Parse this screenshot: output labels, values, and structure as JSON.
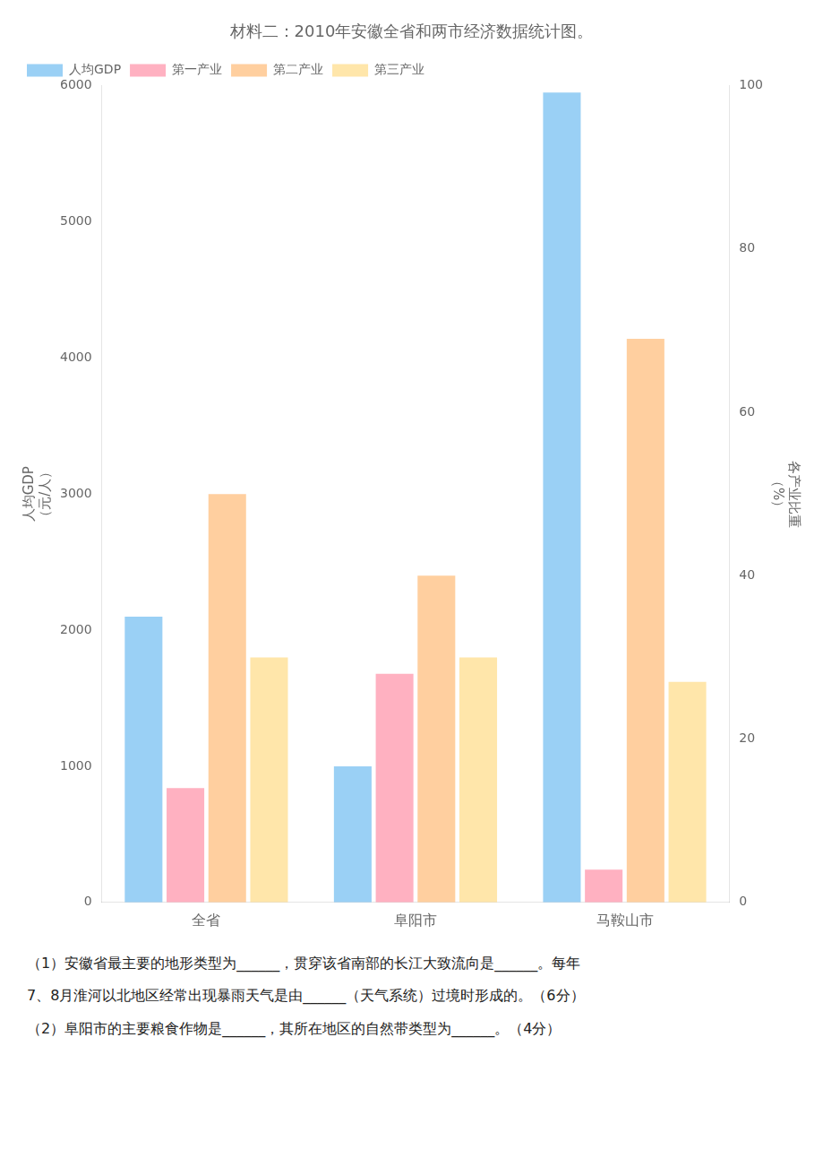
{
  "chart_data": {
    "type": "bar",
    "title": "材料二：2010年安徽全省和两市经济数据统计图。",
    "categories": [
      "全省",
      "阜阳市",
      "马鞍山市"
    ],
    "series": [
      {
        "name": "人均GDP",
        "values": [
          2100,
          1000,
          5950
        ]
      },
      {
        "name": "第一产业",
        "values": [
          14,
          28,
          4
        ],
        "axis": "y2"
      },
      {
        "name": "第二产业",
        "values": [
          50,
          40,
          69
        ],
        "axis": "y2"
      },
      {
        "name": "第三产业",
        "values": [
          30,
          30,
          27
        ],
        "axis": "y2"
      }
    ],
    "ylabel": "人均GDP",
    "y_unit": "（元/人）",
    "y2label": "各产业比重",
    "y2_unit": "（%）",
    "ylim": [
      0,
      6000
    ],
    "yticks": [
      0,
      1000,
      2000,
      3000,
      4000,
      5000,
      6000
    ],
    "y2lim": [
      0,
      100
    ],
    "y2ticks": [
      0,
      20,
      40,
      60,
      80,
      100
    ],
    "legend": "upper left",
    "grid": false,
    "annotations": [
      "（1）安徽省最主要的地形类型为______，贯穿该省南部的长江大致流向是______。每年",
      "7、8月淮河以北地区经常出现暴雨天气是由______（天气系统）过境时形成的。（6分）",
      "（2）阜阳市的主要粮食作物是______，其所在地区的自然带类型为______。（4分）"
    ]
  }
}
